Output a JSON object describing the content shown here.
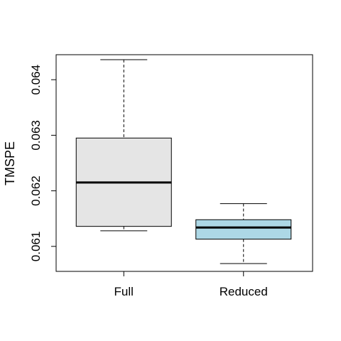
{
  "chart_data": {
    "type": "boxplot",
    "ylabel": "TMSPE",
    "categories": [
      "Full",
      "Reduced"
    ],
    "yticks": [
      0.061,
      0.062,
      0.063,
      0.064
    ],
    "ylim": [
      0.06055,
      0.06445
    ],
    "grid": false,
    "boxes": [
      {
        "category": "Full",
        "whisker_low": 0.06128,
        "q1": 0.06136,
        "median": 0.06215,
        "q3": 0.06295,
        "whisker_high": 0.06436,
        "fill": "#e5e5e5"
      },
      {
        "category": "Reduced",
        "whisker_low": 0.06069,
        "q1": 0.06113,
        "median": 0.06134,
        "q3": 0.06148,
        "whisker_high": 0.06177,
        "fill": "#add8e6"
      }
    ]
  }
}
